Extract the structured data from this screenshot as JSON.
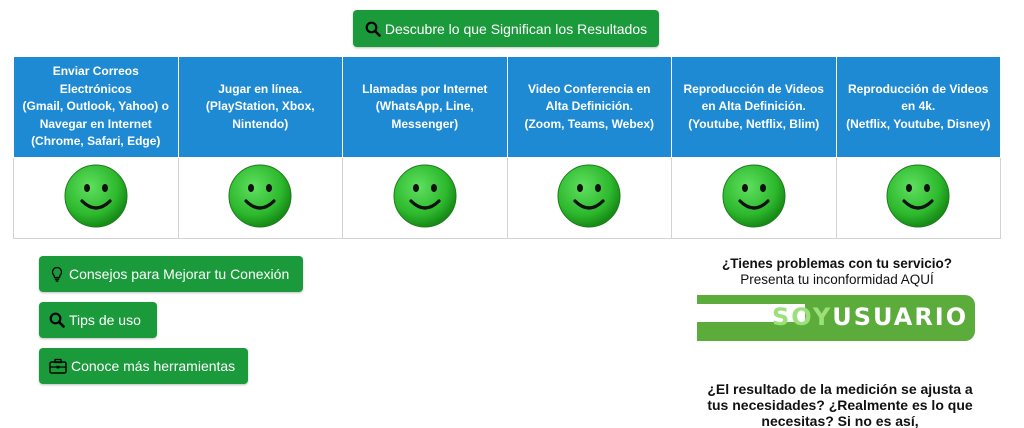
{
  "header": {
    "results_button_label": "Descubre lo que Significan los Resultados"
  },
  "services": {
    "columns": [
      {
        "label_lines": [
          "Enviar Correos",
          "Electrónicos",
          "(Gmail, Outlook, Yahoo) o",
          "Navegar en Internet",
          "(Chrome, Safari, Edge)"
        ],
        "status": "smiley-happy"
      },
      {
        "label_lines": [
          "Jugar en línea.",
          "(PlayStation, Xbox,",
          "Nintendo)"
        ],
        "status": "smiley-happy"
      },
      {
        "label_lines": [
          "Llamadas por Internet",
          "(WhatsApp, Line,",
          "Messenger)"
        ],
        "status": "smiley-happy"
      },
      {
        "label_lines": [
          "Video Conferencia en",
          "Alta Definición.",
          "(Zoom, Teams, Webex)"
        ],
        "status": "smiley-happy"
      },
      {
        "label_lines": [
          "Reproducción de Videos",
          "en Alta Definición.",
          "(Youtube, Netflix, Blim)"
        ],
        "status": "smiley-happy"
      },
      {
        "label_lines": [
          "Reproducción de Videos",
          "en 4k.",
          "(Netflix, Youtube, Disney)"
        ],
        "status": "smiley-happy"
      }
    ]
  },
  "actions": {
    "consejos_label": "Consejos para Mejorar tu Conexión",
    "tips_label": "Tips de uso",
    "herramientas_label": "Conoce más herramientas"
  },
  "complaint": {
    "question": "¿Tienes problemas con tu servicio?",
    "prompt": "Presenta tu inconformidad AQUÍ",
    "logo_soy": "SOY",
    "logo_usuario": "USUARIO"
  },
  "medicion": {
    "lines": [
      "¿El resultado de la medición se ajusta a",
      "tus necesidades? ¿Realmente es lo que",
      "necesitas? Si no es así,"
    ]
  },
  "colors": {
    "button_green": "#1a9a3a",
    "header_blue": "#1f8ad4",
    "smiley_green": "#2db82d",
    "logo_green": "#5cac3c"
  }
}
